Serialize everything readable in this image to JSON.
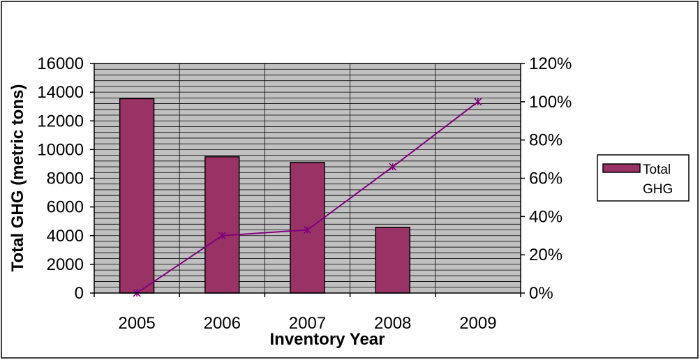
{
  "chart_data": {
    "type": "bar",
    "categories": [
      "2005",
      "2006",
      "2007",
      "2008",
      "2009"
    ],
    "xlabel": "Inventory Year",
    "ylabel": "Total GHG (metric tons)",
    "ylim": [
      0,
      16000
    ],
    "y_ticks": [
      "0",
      "2000",
      "4000",
      "6000",
      "8000",
      "10000",
      "12000",
      "14000",
      "16000"
    ],
    "y2lim": [
      0,
      120
    ],
    "y2_ticks": [
      "0%",
      "20%",
      "40%",
      "60%",
      "80%",
      "100%",
      "120%"
    ],
    "grid": true,
    "legend_position": "right",
    "series": [
      {
        "name": "Total GHG",
        "kind": "bar",
        "axis": "left",
        "values": [
          13550,
          9500,
          9100,
          4580,
          0
        ],
        "color": "#993366"
      },
      {
        "kind": "line",
        "axis": "right",
        "values": [
          0,
          30,
          33,
          66,
          100
        ],
        "color": "#800080",
        "marker": "star"
      }
    ],
    "legend": {
      "label_line1": "Total",
      "label_line2": "GHG"
    },
    "colors": {
      "plot_background": "#c0c0c0",
      "gridline": "#000000",
      "bar_fill": "#993366",
      "line": "#800080"
    }
  }
}
